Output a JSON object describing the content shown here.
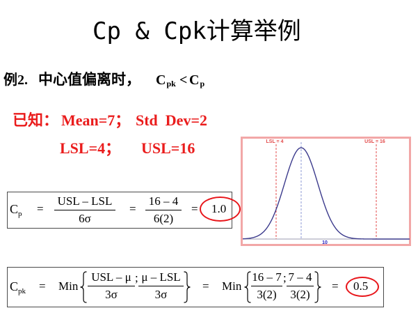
{
  "title": "Cp & Cpk计算举例",
  "example": {
    "prefix": "例2.",
    "text": "中心值偏离时，",
    "lhs": {
      "base": "C",
      "sub": "pk"
    },
    "relation": "<",
    "rhs": {
      "base": "C",
      "sub": "p"
    }
  },
  "given": {
    "label": "已知：",
    "mean": "Mean=7；",
    "std_dev": "Std  Dev=2",
    "lsl": "LSL=4；",
    "usl": "USL=16"
  },
  "cp_formula": {
    "symbol": {
      "base": "C",
      "sub": "p"
    },
    "equals": "=",
    "general": {
      "num": "USL – LSL",
      "den": "6σ"
    },
    "numeric": {
      "num": "16 – 4",
      "den": "6(2)"
    },
    "result": "1.0"
  },
  "cpk_formula": {
    "symbol": {
      "base": "C",
      "sub": "pk"
    },
    "equals": "=",
    "min": "Min",
    "separator": ";",
    "general": [
      {
        "num": "USL – μ",
        "den": "3σ"
      },
      {
        "num": "μ – LSL",
        "den": "3σ"
      }
    ],
    "numeric": [
      {
        "num": "16 – 7",
        "den": "3(2)"
      },
      {
        "num": "7 – 4",
        "den": "3(2)"
      }
    ],
    "result": "0.5"
  },
  "colors": {
    "given_text": "#ea1c1c",
    "result_ring": "#e8161b",
    "formula_border": "#4a4a4a"
  },
  "chart_data": {
    "type": "line",
    "curve": {
      "shape": "normal",
      "mean": 7,
      "std": 2,
      "color": "#3b3a8c"
    },
    "xlim": [
      0,
      20
    ],
    "ylim": [
      0,
      0.22
    ],
    "grid": false,
    "reference_lines": [
      {
        "label": "LSL = 4",
        "x": 4,
        "color": "#e34b4b"
      },
      {
        "label": "USL = 16",
        "x": 16,
        "color": "#e34b4b"
      }
    ],
    "mean_line": {
      "x": 7,
      "color": "#8c9ad4"
    },
    "x_ticks": [
      {
        "value": 10,
        "label": "10",
        "color": "#2626c4"
      }
    ],
    "frame_color": "#f2a7a7",
    "axis_color": "#9b9bb0"
  }
}
